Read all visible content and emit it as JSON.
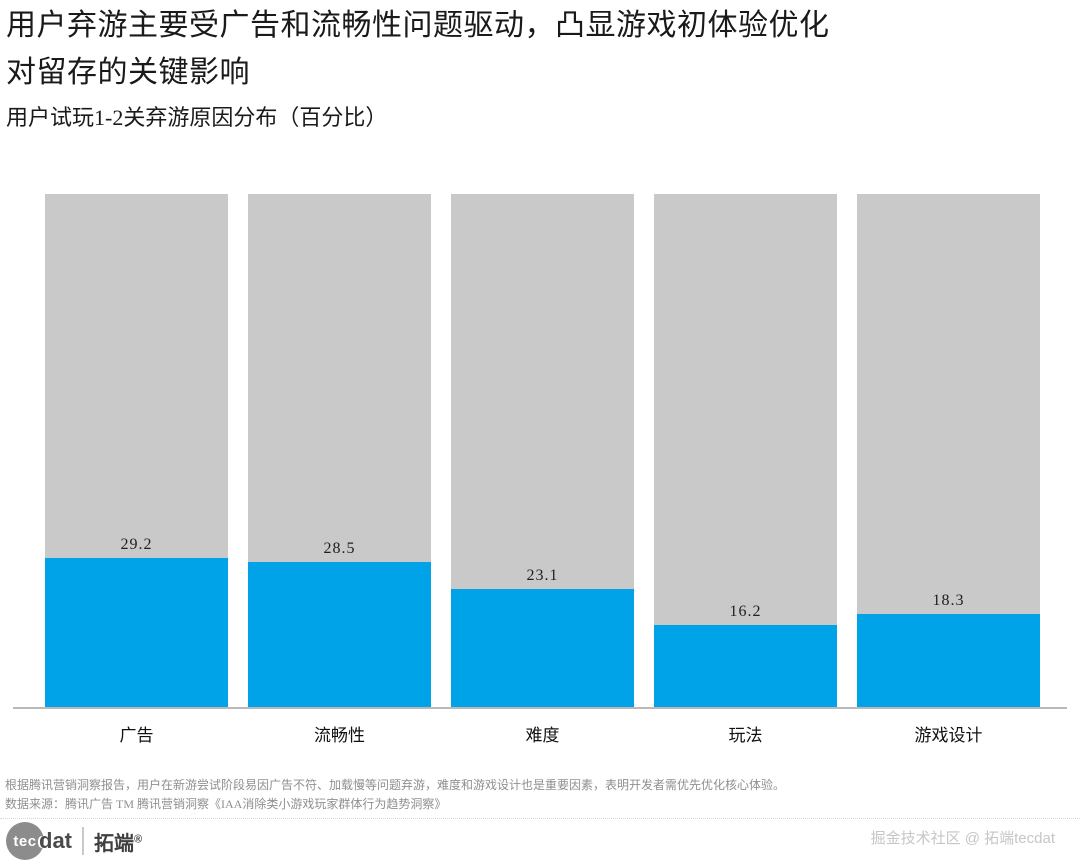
{
  "header": {
    "title_line1": "用户弃游主要受广告和流畅性问题驱动，凸显游戏初体验优化",
    "title_line2": "对留存的关键影响",
    "subtitle": "用户试玩1-2关弃游原因分布（百分比）"
  },
  "chart_data": {
    "type": "bar",
    "title": "用户试玩1-2关弃游原因分布（百分比）",
    "categories": [
      "广告",
      "流畅性",
      "难度",
      "玩法",
      "游戏设计"
    ],
    "values": [
      29.2,
      28.5,
      23.1,
      16.2,
      18.3
    ],
    "xlabel": "",
    "ylabel": "百分比",
    "ylim": [
      0,
      100
    ],
    "background_reference_value": 100,
    "bar_color": "#00a2e8",
    "background_bar_color": "#c9c9c9",
    "axis_color": "#b9b9b9",
    "grid": "off",
    "legend": "none",
    "value_labels": "above blue segment"
  },
  "footnote": {
    "line1": "根据腾讯营销洞察报告，用户在新游尝试阶段易因广告不符、加载慢等问题弃游，难度和游戏设计也是重要因素，表明开发者需优先优化核心体验。",
    "line2": "数据来源：腾讯广告 TM 腾讯营销洞察《IAA消除类小游戏玩家群体行为趋势洞察》"
  },
  "footer": {
    "logo_circle_text": "tec",
    "logo_text": "dat",
    "logo_cn": "拓端",
    "logo_reg": "®",
    "watermark": "掘金技术社区 @ 拓端tecdat"
  }
}
